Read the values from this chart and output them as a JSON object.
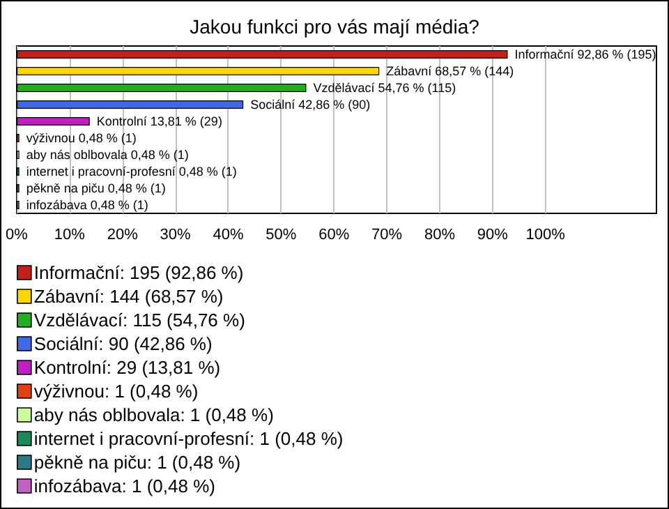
{
  "chart_data": {
    "type": "bar",
    "orientation": "horizontal",
    "stacked": true,
    "title": "Jakou funkci pro vás mají média?",
    "categories": [
      null,
      null,
      null,
      null,
      null,
      null,
      null,
      null,
      null,
      null
    ],
    "xlim": [
      0,
      121
    ],
    "xticks": [
      {
        "value": 0,
        "label": "0%"
      },
      {
        "value": 10,
        "label": "10%"
      },
      {
        "value": 20,
        "label": "20%"
      },
      {
        "value": 30,
        "label": "30%"
      },
      {
        "value": 40,
        "label": "40%"
      },
      {
        "value": 50,
        "label": "50%"
      },
      {
        "value": 60,
        "label": "60%"
      },
      {
        "value": 70,
        "label": "70%"
      },
      {
        "value": 80,
        "label": "80%"
      },
      {
        "value": 90,
        "label": "90%"
      },
      {
        "value": 100,
        "label": "100%"
      }
    ],
    "grid": "x",
    "legend": "bottom left",
    "series": [
      {
        "name": "Informační: 195 (92,86 %)",
        "color": "#c0221b",
        "values": [
          92.86,
          null,
          null,
          null,
          null,
          null,
          null,
          null,
          null,
          null
        ],
        "value_labels": [
          "Informační 92,86 % (195)",
          null,
          null,
          null,
          null,
          null,
          null,
          null,
          null,
          null
        ]
      },
      {
        "name": "Zábavní: 144 (68,57 %)",
        "color": "#ffd700",
        "values": [
          null,
          68.57,
          null,
          null,
          null,
          null,
          null,
          null,
          null,
          null
        ],
        "value_labels": [
          null,
          "Zábavní 68,57 % (144)",
          null,
          null,
          null,
          null,
          null,
          null,
          null,
          null
        ]
      },
      {
        "name": "Vzdělávací: 115 (54,76 %)",
        "color": "#22b022",
        "values": [
          null,
          null,
          54.76,
          null,
          null,
          null,
          null,
          null,
          null,
          null
        ],
        "value_labels": [
          null,
          null,
          "Vzdělávací 54,76 % (115)",
          null,
          null,
          null,
          null,
          null,
          null,
          null
        ]
      },
      {
        "name": "Sociální: 90 (42,86 %)",
        "color": "#4169e1",
        "values": [
          null,
          null,
          null,
          42.86,
          null,
          null,
          null,
          null,
          null,
          null
        ],
        "value_labels": [
          null,
          null,
          null,
          "Sociální 42,86 % (90)",
          null,
          null,
          null,
          null,
          null,
          null
        ]
      },
      {
        "name": "Kontrolní: 29 (13,81 %)",
        "color": "#c020c0",
        "values": [
          null,
          null,
          null,
          null,
          13.81,
          null,
          null,
          null,
          null,
          null
        ],
        "value_labels": [
          null,
          null,
          null,
          null,
          "Kontrolní 13,81 % (29)",
          null,
          null,
          null,
          null,
          null
        ]
      },
      {
        "name": "výživnou: 1 (0,48 %)",
        "color": "#e04010",
        "values": [
          null,
          null,
          null,
          null,
          null,
          0.48,
          null,
          null,
          null,
          null
        ],
        "value_labels": [
          null,
          null,
          null,
          null,
          null,
          "výživnou 0,48 % (1)",
          null,
          null,
          null,
          null
        ]
      },
      {
        "name": "aby nás oblbovala: 1 (0,48 %)",
        "color": "#ccff99",
        "values": [
          null,
          null,
          null,
          null,
          null,
          null,
          0.48,
          null,
          null,
          null
        ],
        "value_labels": [
          null,
          null,
          null,
          null,
          null,
          null,
          "aby nás oblbovala 0,48 % (1)",
          null,
          null,
          null
        ]
      },
      {
        "name": "internet i pracovní-profesní: 1 (0,48 %)",
        "color": "#1a8a5a",
        "values": [
          null,
          null,
          null,
          null,
          null,
          null,
          null,
          0.48,
          null,
          null
        ],
        "value_labels": [
          null,
          null,
          null,
          null,
          null,
          null,
          null,
          "internet i pracovní-profesní 0,48 % (1)",
          null,
          null
        ]
      },
      {
        "name": "pěkně na piču: 1 (0,48 %)",
        "color": "#2a7a8a",
        "values": [
          null,
          null,
          null,
          null,
          null,
          null,
          null,
          null,
          0.48,
          null
        ],
        "value_labels": [
          null,
          null,
          null,
          null,
          null,
          null,
          null,
          null,
          "pěkně na piču 0,48 % (1)",
          null
        ]
      },
      {
        "name": "infozábava: 1 (0,48 %)",
        "color": "#c060c0",
        "values": [
          null,
          null,
          null,
          null,
          null,
          null,
          null,
          null,
          null,
          0.48
        ],
        "value_labels": [
          null,
          null,
          null,
          null,
          null,
          null,
          null,
          null,
          null,
          "infozábava 0,48 % (1)"
        ]
      }
    ]
  }
}
